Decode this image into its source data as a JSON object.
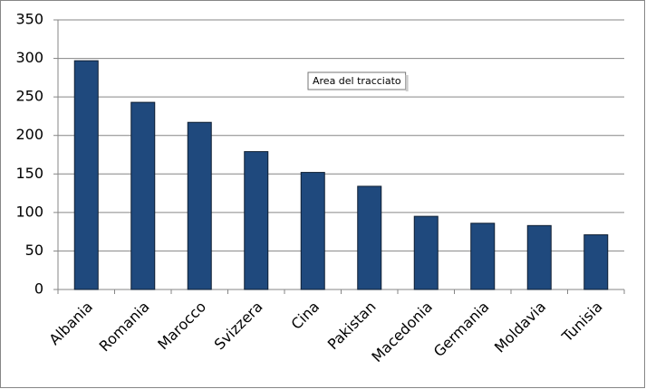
{
  "chart_data": {
    "type": "bar",
    "categories": [
      "Albania",
      "Romania",
      "Marocco",
      "Svizzera",
      "Cina",
      "Pakistan",
      "Macedonia",
      "Germania",
      "Moldavia",
      "Tunisia"
    ],
    "values": [
      297,
      243,
      217,
      179,
      152,
      134,
      95,
      86,
      83,
      71
    ],
    "color": "#1f497d",
    "ylim": [
      0,
      350
    ],
    "yticks": [
      0,
      50,
      100,
      150,
      200,
      250,
      300,
      350
    ],
    "grid": true,
    "tooltip": "Area del tracciato"
  }
}
